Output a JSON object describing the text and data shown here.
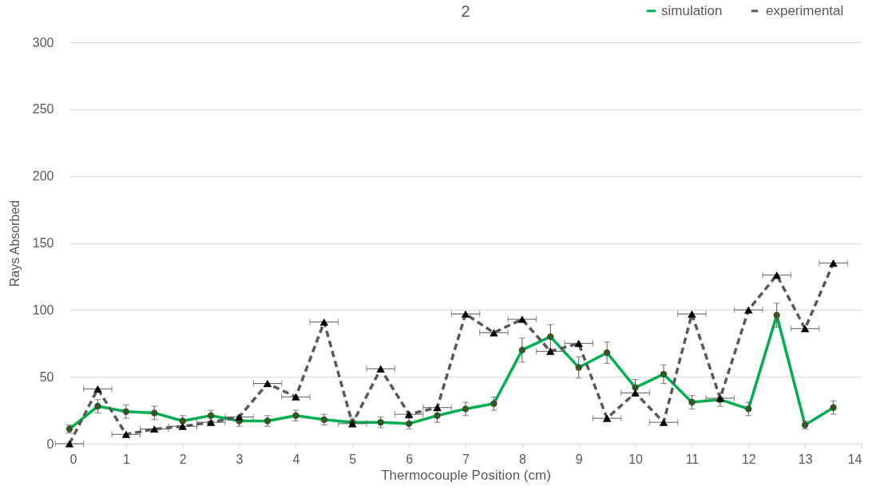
{
  "chart_data": {
    "type": "line",
    "title": "2",
    "xlabel": "Thermocouple Position (cm)",
    "ylabel": "Rays Absorbed",
    "xlim": [
      0,
      14
    ],
    "xticks": [
      0,
      1,
      2,
      3,
      4,
      5,
      6,
      7,
      8,
      9,
      10,
      11,
      12,
      13,
      14
    ],
    "ylim": [
      0,
      300
    ],
    "yticks": [
      0,
      50,
      100,
      150,
      200,
      250,
      300
    ],
    "grid": "y",
    "legend": "top right",
    "series": [
      {
        "name": "simulation",
        "color": "#00b050",
        "marker": "circle",
        "line_style": "solid",
        "x": [
          0,
          0.5,
          1,
          1.5,
          2,
          2.5,
          3,
          3.5,
          4,
          4.5,
          5,
          5.5,
          6,
          6.5,
          7,
          7.5,
          8,
          8.5,
          9,
          9.5,
          10,
          10.5,
          11,
          11.5,
          12,
          12.5,
          13,
          13.5
        ],
        "values": [
          11,
          28,
          24,
          23,
          17,
          21,
          17,
          17,
          21,
          18,
          16,
          16,
          15,
          21,
          26,
          30,
          70,
          80,
          57,
          68,
          42,
          52,
          31,
          33,
          26,
          96,
          14,
          27
        ],
        "errors": [
          3,
          5,
          5,
          5,
          4,
          4,
          4,
          4,
          4,
          4,
          3,
          4,
          4,
          5,
          5,
          5,
          9,
          9,
          8,
          8,
          6,
          7,
          5,
          5,
          5,
          9,
          3,
          5
        ]
      },
      {
        "name": "experimental",
        "color": "#595959",
        "marker": "triangle",
        "line_style": "dashed",
        "x": [
          0,
          0.5,
          1,
          1.5,
          2,
          2.5,
          3,
          3.5,
          4,
          4.5,
          5,
          5.5,
          6,
          6.5,
          7,
          7.5,
          8,
          8.5,
          9,
          9.5,
          10,
          10.5,
          11,
          11.5,
          12,
          12.5,
          13,
          13.5
        ],
        "values": [
          0,
          41,
          7,
          11,
          13,
          16,
          20,
          45,
          35,
          91,
          15,
          56,
          22,
          27,
          97,
          83,
          93,
          69,
          75,
          19,
          38,
          16,
          97,
          34,
          100,
          126,
          86,
          135
        ],
        "xerrors": [
          0.25,
          0.25,
          0.25,
          0.25,
          0.25,
          0.25,
          0.25,
          0.25,
          0.25,
          0.25,
          0.25,
          0.25,
          0.25,
          0.25,
          0.25,
          0.25,
          0.25,
          0.25,
          0.25,
          0.25,
          0.25,
          0.25,
          0.25,
          0.25,
          0.25,
          0.25,
          0.25,
          0.25
        ]
      }
    ]
  }
}
